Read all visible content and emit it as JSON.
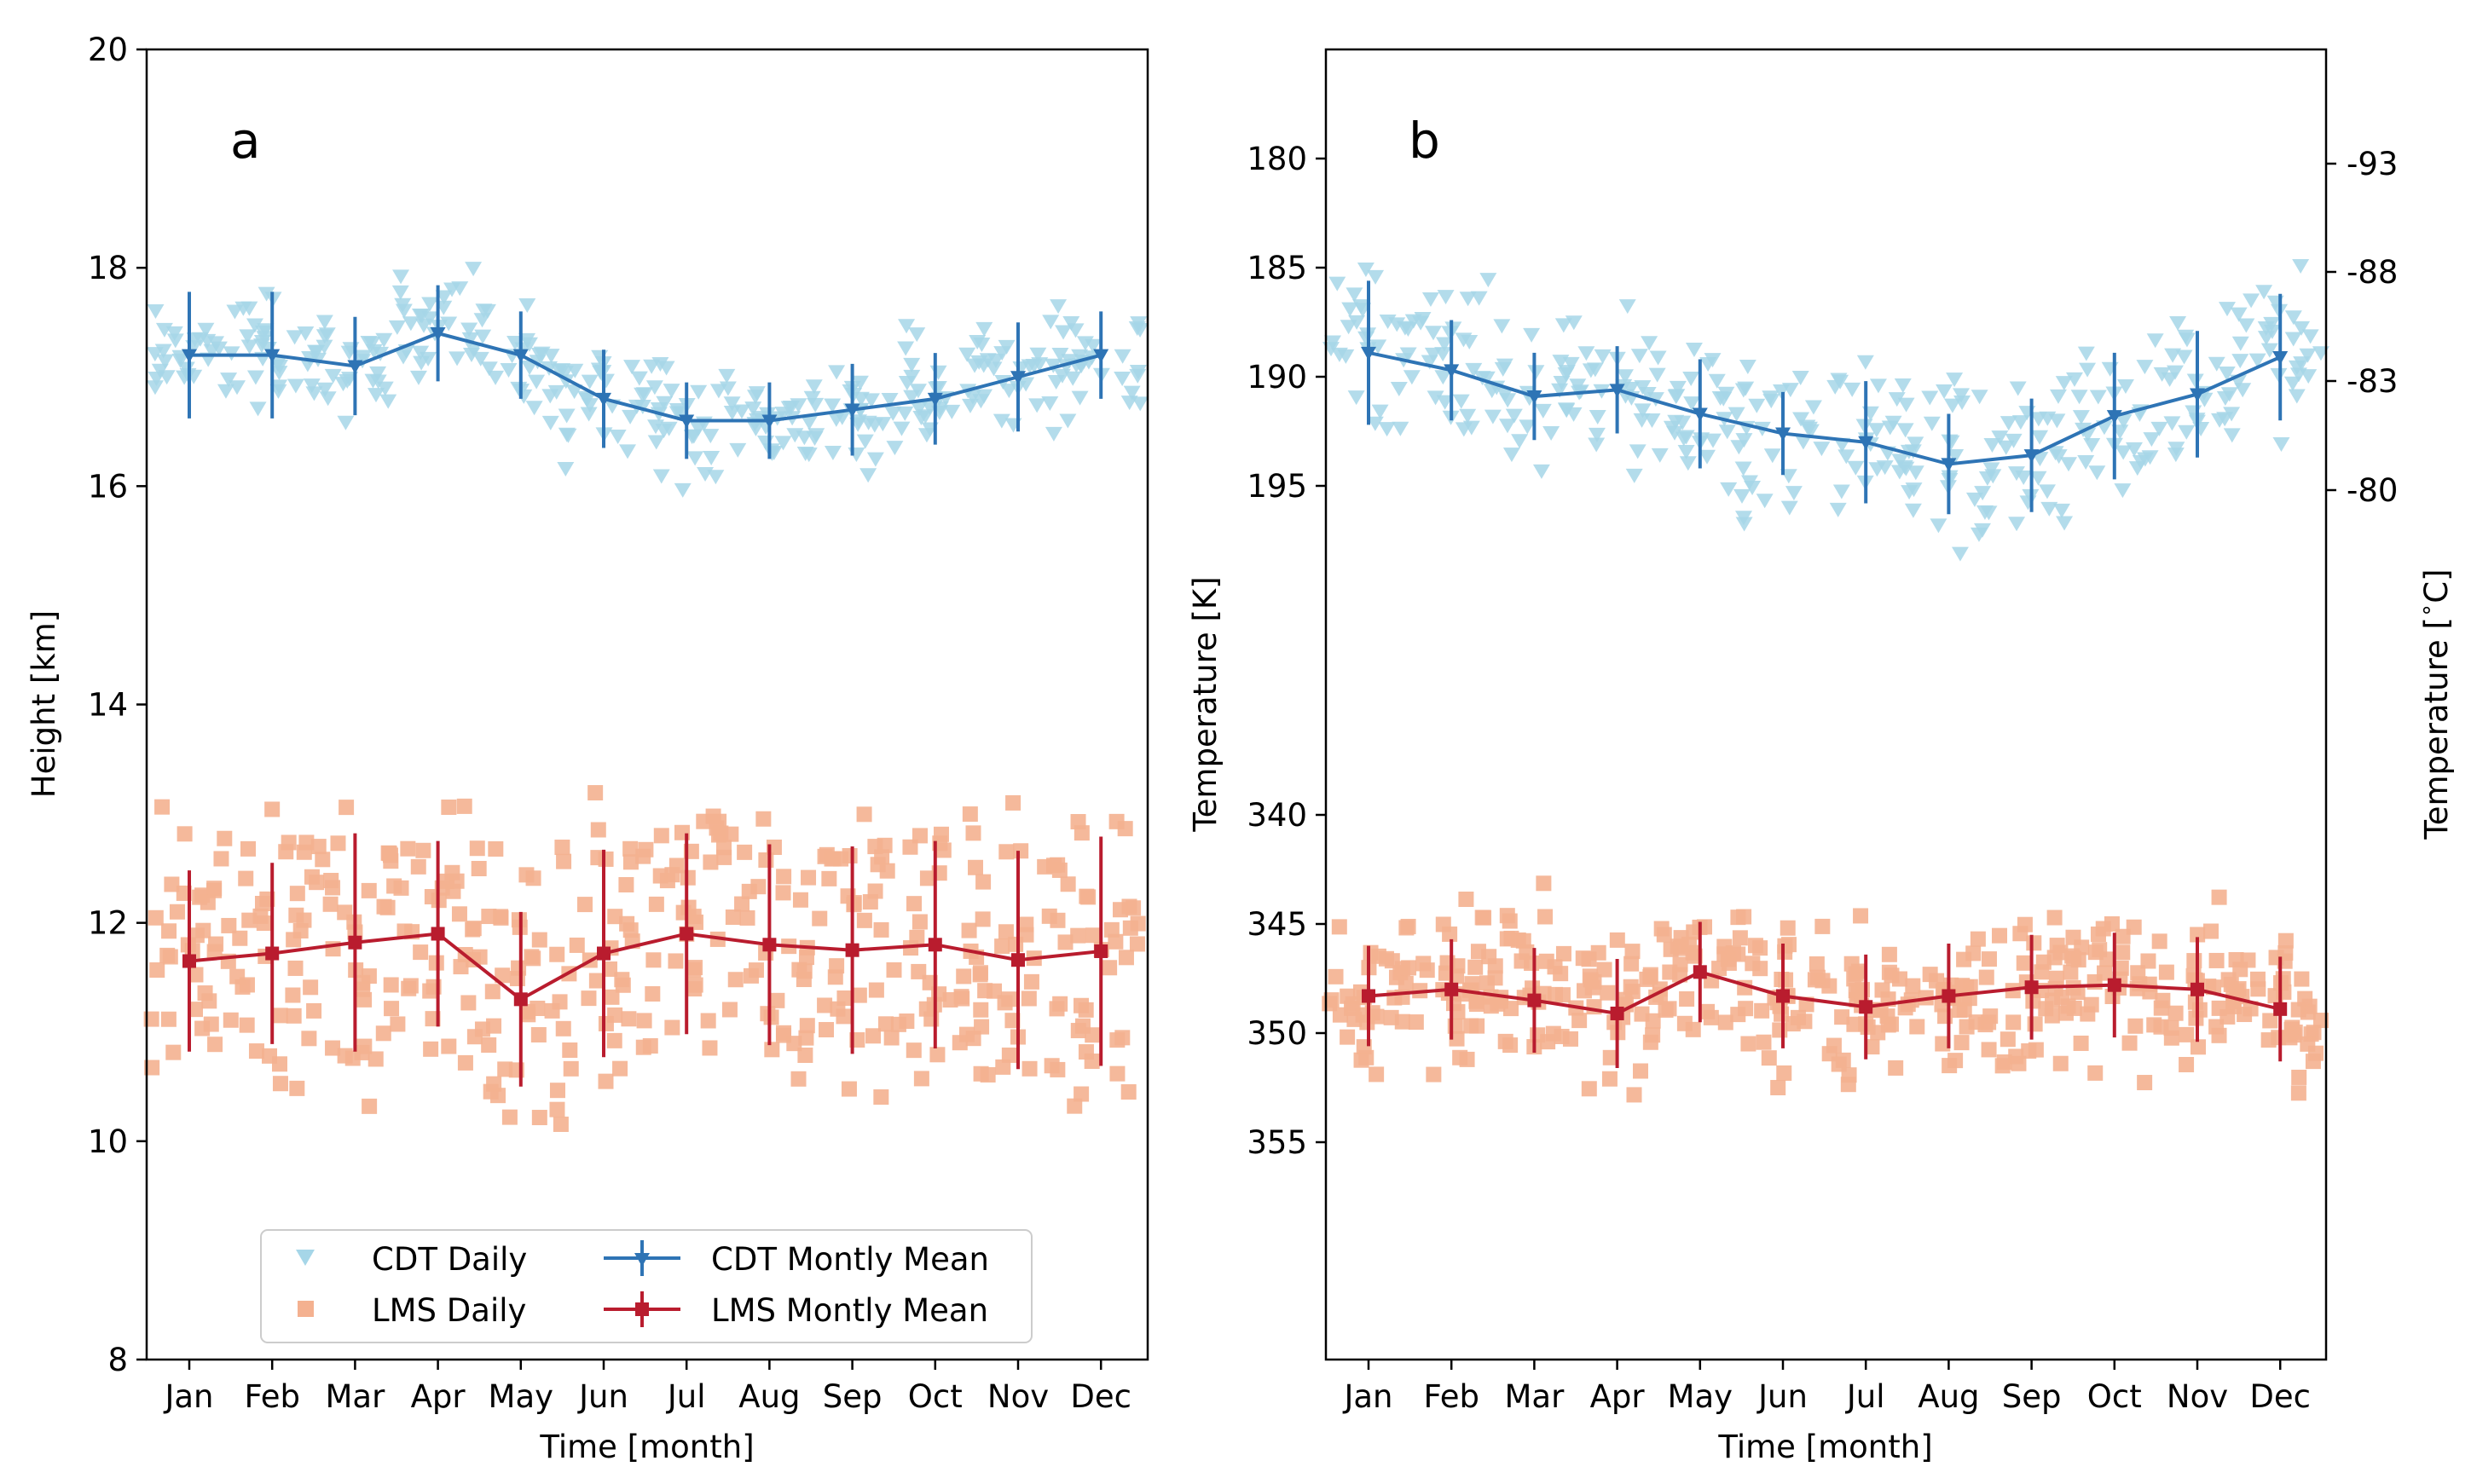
{
  "colors": {
    "cdt_daily": "#a6d6e8",
    "cdt_mean": "#2e74b5",
    "lms_daily": "#f4b190",
    "lms_mean": "#b91c2e"
  },
  "chart_data": [
    {
      "type": "scatter",
      "panel_label": "a",
      "xlabel": "Time [month]",
      "ylabel": "Height [km]",
      "ylim": [
        8,
        20
      ],
      "yticks": [
        "8",
        "10",
        "12",
        "14",
        "16",
        "18",
        "20"
      ],
      "categories": [
        "Jan",
        "Feb",
        "Mar",
        "Apr",
        "May",
        "Jun",
        "Jul",
        "Aug",
        "Sep",
        "Oct",
        "Nov",
        "Dec"
      ],
      "series": [
        {
          "name": "CDT Montly Mean",
          "values": [
            17.2,
            17.2,
            17.1,
            17.4,
            17.2,
            16.8,
            16.6,
            16.6,
            16.7,
            16.8,
            17.0,
            17.2
          ],
          "errors": [
            0.58,
            0.58,
            0.45,
            0.44,
            0.4,
            0.45,
            0.35,
            0.35,
            0.42,
            0.42,
            0.5,
            0.4
          ]
        },
        {
          "name": "LMS Montly Mean",
          "values": [
            11.65,
            11.72,
            11.82,
            11.9,
            11.3,
            11.72,
            11.9,
            11.8,
            11.75,
            11.8,
            11.66,
            11.74
          ],
          "errors": [
            0.83,
            0.83,
            1.0,
            0.85,
            0.8,
            0.95,
            0.92,
            0.92,
            0.95,
            0.95,
            1.0,
            1.05
          ]
        },
        {
          "name": "CDT Daily",
          "center": "CDT Montly Mean",
          "spread": 0.45,
          "count_per_month": 30
        },
        {
          "name": "LMS Daily",
          "center": "LMS Montly Mean",
          "spread": 1.15,
          "count_per_month": 36
        }
      ],
      "legend": {
        "placement": "lower center",
        "entries": [
          "CDT Daily",
          "LMS Daily",
          "CDT Montly Mean",
          "LMS Montly Mean"
        ]
      }
    },
    {
      "type": "scatter",
      "panel_label": "b",
      "xlabel": "Time [month]",
      "ylabel": "Temperature [K]",
      "ylabel_right": "Temperature [$^\\circ$C]",
      "ylim_note": "inverted broken axis",
      "yticks": [
        "180",
        "185",
        "190",
        "195",
        "340",
        "345",
        "350",
        "355"
      ],
      "yticks_right": [
        "-93",
        "-88",
        "-83",
        "-80"
      ],
      "categories": [
        "Jan",
        "Feb",
        "Mar",
        "Apr",
        "May",
        "Jun",
        "Jul",
        "Aug",
        "Sep",
        "Oct",
        "Nov",
        "Dec"
      ],
      "series": [
        {
          "name": "CDT Montly Mean",
          "values": [
            188.9,
            189.7,
            190.9,
            190.6,
            191.7,
            192.6,
            193.0,
            194.0,
            193.6,
            191.8,
            190.8,
            189.1
          ],
          "errors": [
            3.3,
            2.3,
            2.0,
            2.0,
            2.5,
            1.9,
            2.8,
            2.3,
            2.6,
            2.9,
            2.9,
            2.9
          ]
        },
        {
          "name": "LMS Montly Mean",
          "values": [
            348.3,
            348.0,
            348.5,
            349.1,
            347.2,
            348.3,
            348.8,
            348.3,
            347.9,
            347.8,
            348.0,
            348.9
          ],
          "errors": [
            2.3,
            2.3,
            2.4,
            2.5,
            2.3,
            2.4,
            2.4,
            2.4,
            2.4,
            2.4,
            2.4,
            2.4
          ]
        },
        {
          "name": "CDT Daily",
          "center": "CDT Montly Mean",
          "spread": 3.5,
          "count_per_month": 30
        },
        {
          "name": "LMS Daily",
          "center": "LMS Montly Mean",
          "spread": 3.2,
          "count_per_month": 36
        }
      ]
    }
  ]
}
